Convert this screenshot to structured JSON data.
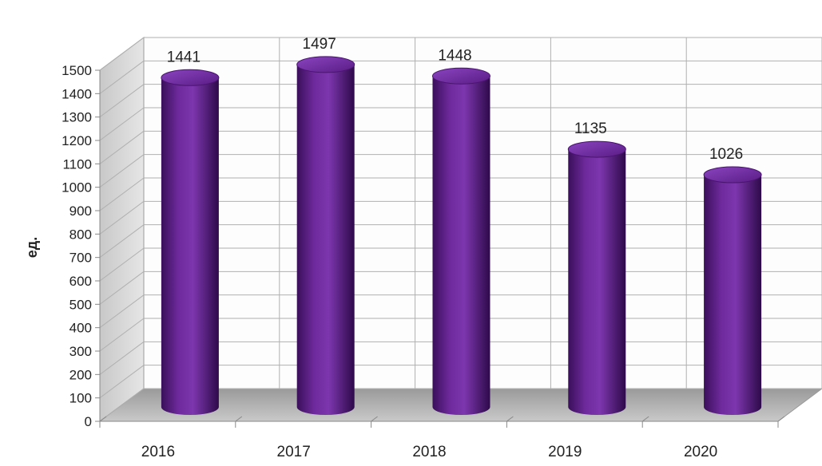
{
  "chart_data": {
    "type": "bar",
    "title": "",
    "categories": [
      "2016",
      "2017",
      "2018",
      "2019",
      "2020"
    ],
    "series": [
      {
        "values": [
          1441,
          1497,
          1448,
          1135,
          1026
        ]
      }
    ],
    "xlabel": "",
    "ylabel": "ед.",
    "ylim": [
      0,
      1500
    ],
    "yticks": [
      0,
      100,
      200,
      300,
      400,
      500,
      600,
      700,
      800,
      900,
      1000,
      1100,
      1200,
      1300,
      1400,
      1500
    ],
    "grid": true,
    "legend": "none",
    "bar_shape": "cylinder",
    "bar_color": "#6a2396",
    "data_labels": [
      "1441",
      "1497",
      "1448",
      "1135",
      "1026"
    ]
  }
}
